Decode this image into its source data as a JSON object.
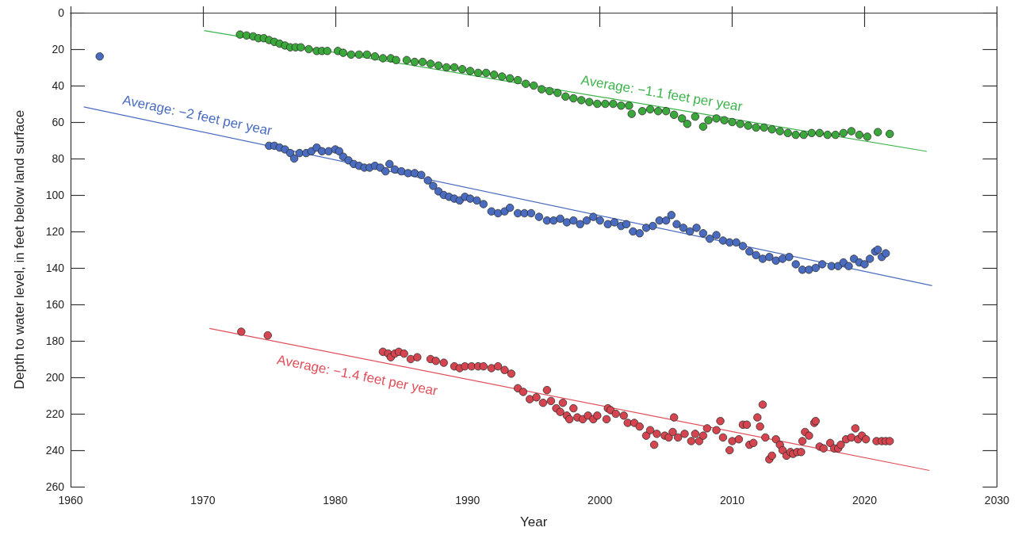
{
  "chart_data": {
    "type": "scatter",
    "xlabel": "Year",
    "ylabel": "Depth to water level, in feet below land surface",
    "xlim": [
      1960,
      2030
    ],
    "xticks": [
      1960,
      1970,
      1980,
      1990,
      2000,
      2010,
      2020,
      2030
    ],
    "ylim": [
      260,
      0
    ],
    "yticks": [
      0,
      20,
      40,
      60,
      80,
      100,
      120,
      140,
      160,
      180,
      200,
      220,
      240,
      260
    ],
    "grid": false,
    "marker": "circle",
    "series": [
      {
        "color": "#3aa83a",
        "x": [
          1972.8,
          1973.3,
          1973.8,
          1974.2,
          1974.6,
          1975.0,
          1975.4,
          1975.8,
          1976.2,
          1976.6,
          1977.0,
          1977.4,
          1978.0,
          1978.6,
          1979.0,
          1979.4,
          1980.2,
          1980.6,
          1981.2,
          1981.8,
          1982.4,
          1983.0,
          1983.6,
          1984.2,
          1984.6,
          1985.4,
          1986.0,
          1986.6,
          1987.2,
          1987.8,
          1988.4,
          1989.0,
          1989.6,
          1990.2,
          1990.8,
          1991.4,
          1992.0,
          1992.6,
          1993.2,
          1993.8,
          1994.4,
          1995.0,
          1995.6,
          1996.2,
          1996.8,
          1997.4,
          1998.0,
          1998.6,
          1999.2,
          1999.8,
          2000.4,
          2001.0,
          2001.6,
          2002.2,
          2002.4,
          2003.2,
          2003.8,
          2004.4,
          2005.0,
          2005.6,
          2006.2,
          2006.6,
          2007.2,
          2007.8,
          2008.2,
          2008.8,
          2009.4,
          2010.0,
          2010.6,
          2011.2,
          2011.8,
          2012.4,
          2013.0,
          2013.6,
          2014.2,
          2014.8,
          2015.4,
          2016.0,
          2016.6,
          2017.2,
          2017.8,
          2018.4,
          2019.0,
          2019.6,
          2020.2,
          2021.0,
          2021.9
        ],
        "values": [
          12,
          12.5,
          13,
          14,
          14,
          15,
          16,
          17,
          18,
          19,
          19,
          19,
          20,
          21,
          21,
          21,
          21,
          22,
          23,
          23,
          23,
          24,
          25,
          25,
          26,
          26,
          27,
          27,
          28,
          29,
          30,
          30,
          31,
          32,
          33,
          33,
          34,
          35,
          36,
          37,
          39,
          40,
          42,
          43,
          44,
          46,
          47,
          48,
          49,
          50,
          50,
          50,
          51,
          51,
          55.5,
          54,
          53,
          54,
          54,
          56,
          58,
          61,
          57,
          62.5,
          59,
          58,
          59,
          60,
          61,
          62,
          63,
          63,
          64,
          65,
          66,
          67,
          67,
          66,
          66,
          67,
          67,
          66,
          65,
          67,
          68,
          65.5,
          66.5
        ]
      },
      {
        "color": "#4a6cc0",
        "x": [
          1962.2,
          1975.0,
          1975.4,
          1975.8,
          1976.2,
          1976.6,
          1976.9,
          1977.3,
          1977.8,
          1978.2,
          1978.6,
          1979.0,
          1979.5,
          1980.0,
          1980.3,
          1980.6,
          1981.0,
          1981.4,
          1981.8,
          1982.2,
          1982.6,
          1983.0,
          1983.4,
          1983.8,
          1984.1,
          1984.5,
          1985.0,
          1985.5,
          1986.0,
          1986.5,
          1987.0,
          1987.4,
          1987.8,
          1988.2,
          1988.6,
          1989.0,
          1989.4,
          1989.8,
          1990.2,
          1990.7,
          1991.2,
          1991.8,
          1992.3,
          1992.8,
          1993.2,
          1993.8,
          1994.3,
          1994.8,
          1995.4,
          1996.0,
          1996.5,
          1997.0,
          1997.5,
          1998.0,
          1998.5,
          1999.0,
          1999.5,
          2000.0,
          2000.6,
          2001.1,
          2001.6,
          2002.0,
          2002.5,
          2003.0,
          2003.5,
          2004.0,
          2004.5,
          2005.0,
          2005.4,
          2005.8,
          2006.3,
          2006.8,
          2007.3,
          2007.8,
          2008.3,
          2008.8,
          2009.3,
          2009.8,
          2010.3,
          2010.8,
          2011.3,
          2011.8,
          2012.3,
          2012.8,
          2013.3,
          2013.8,
          2014.3,
          2014.8,
          2015.3,
          2015.8,
          2016.3,
          2016.8,
          2017.5,
          2018.0,
          2018.4,
          2018.8,
          2019.2,
          2019.6,
          2020.0,
          2020.4,
          2020.8,
          2021.0,
          2021.3,
          2021.6
        ],
        "values": [
          24,
          73,
          73,
          74,
          75,
          77,
          80,
          77,
          77,
          76,
          74,
          76,
          76,
          75,
          76,
          79,
          81,
          83,
          84,
          85,
          85,
          84,
          85,
          87,
          83,
          86,
          87,
          88,
          88,
          89,
          92,
          95,
          98,
          100,
          101,
          102,
          103,
          101,
          102,
          103,
          105,
          109,
          110,
          109,
          107,
          110,
          110,
          110,
          112,
          114,
          114,
          113,
          115,
          114,
          116,
          114,
          112,
          114,
          116,
          115,
          117,
          116,
          120,
          121,
          118,
          117,
          114,
          114,
          111,
          116,
          118,
          120,
          118,
          121,
          124,
          122,
          125,
          126,
          126,
          128,
          131,
          133,
          135,
          134,
          136,
          135,
          134,
          138,
          141,
          141,
          140,
          138,
          139,
          139,
          137,
          139,
          135,
          137,
          138,
          135,
          131,
          130,
          134,
          132
        ]
      },
      {
        "color": "#d6454f",
        "x": [
          1972.9,
          1974.9,
          1983.6,
          1984.0,
          1984.2,
          1984.5,
          1984.8,
          1985.2,
          1985.7,
          1986.2,
          1987.2,
          1987.6,
          1988.2,
          1989.0,
          1989.4,
          1989.8,
          1990.3,
          1990.8,
          1991.2,
          1991.8,
          1992.3,
          1992.8,
          1993.3,
          1993.8,
          1994.2,
          1994.7,
          1995.2,
          1995.7,
          1996.0,
          1996.3,
          1996.7,
          1997.0,
          1997.2,
          1997.5,
          1997.7,
          1998.0,
          1998.3,
          1998.7,
          1999.1,
          1999.5,
          1999.8,
          2000.5,
          2000.6,
          2000.8,
          2001.2,
          2001.8,
          2002.1,
          2002.6,
          2003.0,
          2003.5,
          2003.8,
          2004.1,
          2004.3,
          2004.9,
          2005.2,
          2005.5,
          2005.6,
          2005.9,
          2006.4,
          2006.9,
          2007.2,
          2007.5,
          2007.8,
          2008.1,
          2008.8,
          2009.1,
          2009.3,
          2009.8,
          2010.0,
          2010.5,
          2010.8,
          2011.1,
          2011.3,
          2011.6,
          2011.9,
          2012.1,
          2012.3,
          2012.5,
          2012.8,
          2013.0,
          2013.3,
          2013.6,
          2013.8,
          2014.1,
          2014.4,
          2014.6,
          2014.9,
          2015.2,
          2015.3,
          2015.5,
          2015.8,
          2016.2,
          2016.3,
          2016.6,
          2016.9,
          2017.4,
          2017.7,
          2018.0,
          2018.2,
          2018.6,
          2019.0,
          2019.3,
          2019.5,
          2019.8,
          2020.1,
          2020.9,
          2021.3,
          2021.6,
          2021.9
        ],
        "values": [
          175,
          177,
          186,
          187,
          189,
          187,
          186,
          187,
          190,
          189,
          190,
          191,
          192,
          194,
          195,
          194,
          194,
          194,
          194,
          195,
          194,
          196,
          198,
          206,
          208,
          212,
          211,
          214,
          207,
          213,
          217,
          219,
          214,
          221,
          223,
          217,
          222,
          223,
          221,
          223,
          221,
          223,
          217,
          218,
          220,
          221,
          225,
          225,
          227,
          232,
          229,
          237,
          231,
          232,
          233,
          230,
          222,
          233,
          231,
          235,
          231,
          235,
          232,
          228,
          229,
          224,
          233,
          240,
          235,
          234,
          226,
          226,
          237,
          236,
          222,
          227,
          215,
          233,
          245,
          243,
          234,
          237,
          240,
          243,
          241,
          242,
          241,
          241,
          235,
          230,
          232,
          225,
          224,
          238,
          239,
          236,
          239,
          239,
          237,
          234,
          233,
          228,
          234,
          232,
          234,
          235,
          235,
          235,
          235
        ]
      },
      {
        "type": "line",
        "marker": "none",
        "color": "#3cb44b",
        "x": [
          1970.1,
          2024.7
        ],
        "values": [
          9.8,
          76.1
        ]
      },
      {
        "type": "line",
        "marker": "none",
        "color": "#4a6cc0",
        "x": [
          1961.0,
          2025.1
        ],
        "values": [
          51.7,
          149.7
        ]
      },
      {
        "type": "line",
        "marker": "none",
        "color": "#e0505a",
        "x": [
          1970.5,
          2024.9
        ],
        "values": [
          173.2,
          251.1
        ]
      }
    ],
    "line_style": "solid",
    "annotations": [
      "Average: −1.1 feet per year",
      "Average: −2 feet per year",
      "Average: −1.4 feet per year"
    ]
  }
}
